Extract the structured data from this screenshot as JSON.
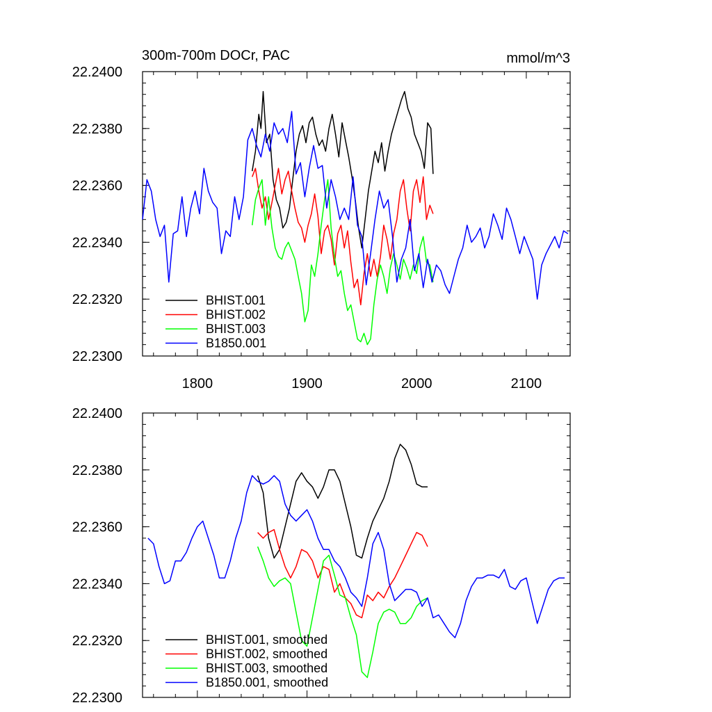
{
  "colors": {
    "BHIST.001": "#000000",
    "BHIST.002": "#ff0000",
    "BHIST.003": "#00ff00",
    "B1850.001": "#0000ff"
  },
  "chart_data": [
    {
      "type": "line",
      "title": "300m-700m DOCr, PAC",
      "units": "mmol/m^3",
      "xlabel": "",
      "ylabel": "",
      "xlim": [
        1750,
        2140
      ],
      "ylim": [
        22.23,
        22.24
      ],
      "xticks": [
        1800,
        1900,
        2000,
        2100
      ],
      "xtick_labels": [
        "1800",
        "1900",
        "2000",
        "2100"
      ],
      "yticks": [
        22.23,
        22.232,
        22.234,
        22.236,
        22.238,
        22.24
      ],
      "ytick_labels": [
        "22.2300",
        "22.2320",
        "22.2340",
        "22.2360",
        "22.2380",
        "22.2400"
      ],
      "legend_position": "bottom-left",
      "series": [
        {
          "name": "BHIST.001",
          "color": "#000000",
          "x": [
            1850,
            1853,
            1856,
            1858,
            1860,
            1863,
            1866,
            1869,
            1872,
            1875,
            1878,
            1881,
            1884,
            1887,
            1890,
            1893,
            1896,
            1899,
            1902,
            1905,
            1908,
            1911,
            1914,
            1917,
            1920,
            1923,
            1926,
            1929,
            1932,
            1935,
            1938,
            1941,
            1944,
            1947,
            1950,
            1953,
            1956,
            1959,
            1962,
            1965,
            1968,
            1971,
            1974,
            1977,
            1980,
            1983,
            1986,
            1989,
            1992,
            1995,
            1998,
            2001,
            2004,
            2007,
            2010,
            2013,
            2015
          ],
          "y": [
            22.2365,
            22.2372,
            22.2385,
            22.238,
            22.2393,
            22.2375,
            22.2378,
            22.2362,
            22.2355,
            22.2352,
            22.2345,
            22.2347,
            22.2352,
            22.2362,
            22.2372,
            22.2378,
            22.2381,
            22.2375,
            22.2382,
            22.2384,
            22.2378,
            22.2374,
            22.2376,
            22.2372,
            22.238,
            22.2385,
            22.2378,
            22.237,
            22.2382,
            22.2376,
            22.237,
            22.2363,
            22.2355,
            22.2345,
            22.2338,
            22.2348,
            22.2358,
            22.2365,
            22.2372,
            22.2368,
            22.2375,
            22.2365,
            22.2372,
            22.2378,
            22.2382,
            22.2386,
            22.239,
            22.2393,
            22.2387,
            22.2384,
            22.2378,
            22.2375,
            22.2372,
            22.2366,
            22.2382,
            22.238,
            22.2364
          ]
        },
        {
          "name": "BHIST.002",
          "color": "#ff0000",
          "x": [
            1850,
            1853,
            1856,
            1859,
            1862,
            1865,
            1868,
            1871,
            1874,
            1877,
            1880,
            1883,
            1886,
            1889,
            1892,
            1895,
            1898,
            1901,
            1904,
            1907,
            1910,
            1913,
            1916,
            1919,
            1922,
            1925,
            1928,
            1931,
            1934,
            1937,
            1940,
            1943,
            1946,
            1949,
            1952,
            1955,
            1958,
            1961,
            1964,
            1967,
            1970,
            1973,
            1976,
            1979,
            1982,
            1985,
            1988,
            1991,
            1994,
            1997,
            2000,
            2003,
            2006,
            2009,
            2012,
            2015
          ],
          "y": [
            22.2363,
            22.2366,
            22.2358,
            22.2352,
            22.2356,
            22.2348,
            22.2354,
            22.236,
            22.2366,
            22.2357,
            22.2362,
            22.2365,
            22.2358,
            22.2352,
            22.2347,
            22.2345,
            22.234,
            22.2346,
            22.235,
            22.2357,
            22.2349,
            22.2336,
            22.2344,
            22.2346,
            22.2341,
            22.2332,
            22.2343,
            22.2346,
            22.2338,
            22.2344,
            22.2333,
            22.2324,
            22.2327,
            22.2318,
            22.2329,
            22.2336,
            22.2328,
            22.2334,
            22.2328,
            22.2335,
            22.2346,
            22.2341,
            22.2334,
            22.2343,
            22.2348,
            22.2358,
            22.2362,
            22.2352,
            22.2344,
            22.2358,
            22.2362,
            22.2354,
            22.2363,
            22.2348,
            22.2353,
            22.235
          ]
        },
        {
          "name": "BHIST.003",
          "color": "#00ff00",
          "x": [
            1850,
            1853,
            1856,
            1859,
            1862,
            1865,
            1868,
            1871,
            1874,
            1877,
            1880,
            1883,
            1886,
            1889,
            1892,
            1895,
            1898,
            1901,
            1904,
            1907,
            1910,
            1913,
            1916,
            1919,
            1922,
            1925,
            1928,
            1931,
            1934,
            1937,
            1940,
            1943,
            1946,
            1949,
            1952,
            1955,
            1958,
            1961,
            1964,
            1967,
            1970,
            1973,
            1976,
            1979,
            1982,
            1985,
            1988,
            1991,
            1994,
            1997,
            2000,
            2003,
            2006,
            2009,
            2012,
            2015
          ],
          "y": [
            22.2346,
            22.2355,
            22.2359,
            22.2362,
            22.2346,
            22.2356,
            22.2345,
            22.2338,
            22.2335,
            22.2334,
            22.2338,
            22.234,
            22.2337,
            22.2334,
            22.2328,
            22.2322,
            22.2312,
            22.2316,
            22.2332,
            22.2328,
            22.2336,
            22.2346,
            22.2355,
            22.2362,
            22.2345,
            22.2335,
            22.2328,
            22.233,
            22.2322,
            22.2316,
            22.2318,
            22.2312,
            22.2306,
            22.2305,
            22.2308,
            22.2304,
            22.2306,
            22.2318,
            22.2327,
            22.2332,
            22.2328,
            22.2322,
            22.2331,
            22.2336,
            22.2332,
            22.2327,
            22.2334,
            22.2331,
            22.2327,
            22.2332,
            22.2329,
            22.2338,
            22.2342,
            22.2333,
            22.2332,
            22.2326
          ]
        },
        {
          "name": "B1850.001",
          "color": "#0000ff",
          "x": [
            1750,
            1754,
            1758,
            1762,
            1766,
            1770,
            1774,
            1778,
            1782,
            1786,
            1790,
            1794,
            1798,
            1802,
            1806,
            1810,
            1814,
            1818,
            1822,
            1826,
            1830,
            1834,
            1838,
            1842,
            1846,
            1850,
            1854,
            1858,
            1862,
            1866,
            1870,
            1874,
            1878,
            1882,
            1886,
            1890,
            1894,
            1898,
            1902,
            1906,
            1910,
            1914,
            1918,
            1922,
            1926,
            1930,
            1934,
            1938,
            1942,
            1946,
            1950,
            1954,
            1958,
            1962,
            1966,
            1970,
            1974,
            1978,
            1982,
            1986,
            1990,
            1994,
            1998,
            2002,
            2006,
            2010,
            2014,
            2018,
            2022,
            2026,
            2030,
            2034,
            2038,
            2042,
            2046,
            2050,
            2054,
            2058,
            2062,
            2066,
            2070,
            2074,
            2078,
            2082,
            2086,
            2090,
            2094,
            2098,
            2102,
            2106,
            2110,
            2114,
            2118,
            2122,
            2126,
            2130,
            2134,
            2138
          ],
          "y": [
            22.2348,
            22.2362,
            22.2358,
            22.2348,
            22.2342,
            22.2346,
            22.2326,
            22.2343,
            22.2344,
            22.2356,
            22.2342,
            22.2352,
            22.2358,
            22.235,
            22.2366,
            22.2358,
            22.2354,
            22.2352,
            22.2336,
            22.2344,
            22.2342,
            22.2356,
            22.2348,
            22.2356,
            22.2376,
            22.238,
            22.2374,
            22.237,
            22.2378,
            22.2372,
            22.2382,
            22.2378,
            22.238,
            22.2375,
            22.2386,
            22.2364,
            22.2368,
            22.2356,
            22.2366,
            22.2374,
            22.2366,
            22.2367,
            22.2352,
            22.2362,
            22.2356,
            22.2348,
            22.2352,
            22.2348,
            22.2363,
            22.2346,
            22.2342,
            22.2325,
            22.2336,
            22.2348,
            22.2358,
            22.2352,
            22.2355,
            22.2342,
            22.2326,
            22.2334,
            22.2338,
            22.2348,
            22.233,
            22.2336,
            22.2324,
            22.2334,
            22.2326,
            22.2332,
            22.233,
            22.2325,
            22.2322,
            22.2328,
            22.2334,
            22.2338,
            22.2346,
            22.234,
            22.2342,
            22.2345,
            22.2338,
            22.2342,
            22.235,
            22.2346,
            22.2341,
            22.2352,
            22.2348,
            22.2342,
            22.2336,
            22.2342,
            22.2338,
            22.2334,
            22.232,
            22.2332,
            22.2336,
            22.2339,
            22.2342,
            22.2338,
            22.2344,
            22.2343
          ]
        }
      ]
    },
    {
      "type": "line",
      "title": "",
      "xlabel": "",
      "ylabel": "",
      "xlim": [
        1750,
        2140
      ],
      "ylim": [
        22.23,
        22.24
      ],
      "xticks": [
        1800,
        1900,
        2000,
        2100
      ],
      "yticks": [
        22.23,
        22.232,
        22.234,
        22.236,
        22.238,
        22.24
      ],
      "ytick_labels": [
        "22.2300",
        "22.2320",
        "22.2340",
        "22.2360",
        "22.2380",
        "22.2400"
      ],
      "legend_position": "bottom-left",
      "series": [
        {
          "name": "BHIST.001, smoothed",
          "color": "#000000",
          "x": [
            1855,
            1860,
            1865,
            1870,
            1875,
            1880,
            1885,
            1890,
            1895,
            1900,
            1905,
            1910,
            1915,
            1920,
            1925,
            1930,
            1935,
            1940,
            1945,
            1950,
            1955,
            1960,
            1965,
            1970,
            1975,
            1980,
            1985,
            1990,
            1995,
            2000,
            2005,
            2010
          ],
          "y": [
            22.2378,
            22.2372,
            22.2356,
            22.2349,
            22.2352,
            22.236,
            22.2368,
            22.2376,
            22.2379,
            22.2376,
            22.2374,
            22.237,
            22.2374,
            22.238,
            22.238,
            22.2376,
            22.2368,
            22.236,
            22.235,
            22.2349,
            22.2356,
            22.2362,
            22.2366,
            22.237,
            22.2376,
            22.2384,
            22.2389,
            22.2387,
            22.2382,
            22.2375,
            22.2374,
            22.2374
          ]
        },
        {
          "name": "BHIST.002, smoothed",
          "color": "#ff0000",
          "x": [
            1855,
            1860,
            1865,
            1870,
            1875,
            1880,
            1885,
            1890,
            1895,
            1900,
            1905,
            1910,
            1915,
            1920,
            1925,
            1930,
            1935,
            1940,
            1945,
            1950,
            1955,
            1960,
            1965,
            1970,
            1975,
            1980,
            1985,
            1990,
            1995,
            2000,
            2005,
            2010
          ],
          "y": [
            22.2358,
            22.2356,
            22.2358,
            22.2359,
            22.2352,
            22.2346,
            22.2342,
            22.2346,
            22.2352,
            22.2351,
            22.2348,
            22.2342,
            22.2346,
            22.2345,
            22.2337,
            22.234,
            22.2335,
            22.2333,
            22.2329,
            22.2328,
            22.2336,
            22.2334,
            22.2337,
            22.2335,
            22.2339,
            22.2342,
            22.2346,
            22.235,
            22.2354,
            22.2358,
            22.2357,
            22.2353
          ]
        },
        {
          "name": "BHIST.003, smoothed",
          "color": "#00ff00",
          "x": [
            1855,
            1860,
            1865,
            1870,
            1875,
            1880,
            1885,
            1890,
            1895,
            1900,
            1905,
            1910,
            1915,
            1920,
            1925,
            1930,
            1935,
            1940,
            1945,
            1950,
            1955,
            1960,
            1965,
            1970,
            1975,
            1980,
            1985,
            1990,
            1995,
            2000,
            2005,
            2010
          ],
          "y": [
            22.2353,
            22.2348,
            22.2342,
            22.2339,
            22.2341,
            22.2342,
            22.234,
            22.233,
            22.232,
            22.2318,
            22.2328,
            22.2338,
            22.2348,
            22.235,
            22.2343,
            22.2336,
            22.2335,
            22.2328,
            22.2322,
            22.2309,
            22.2307,
            22.2316,
            22.2326,
            22.233,
            22.2331,
            22.233,
            22.2326,
            22.2326,
            22.2328,
            22.2332,
            22.2334,
            22.2335
          ]
        },
        {
          "name": "B1850.001, smoothed",
          "color": "#0000ff",
          "x": [
            1755,
            1760,
            1765,
            1770,
            1775,
            1780,
            1785,
            1790,
            1795,
            1800,
            1805,
            1810,
            1815,
            1820,
            1825,
            1830,
            1835,
            1840,
            1845,
            1850,
            1855,
            1860,
            1865,
            1870,
            1875,
            1880,
            1885,
            1890,
            1895,
            1900,
            1905,
            1910,
            1915,
            1920,
            1925,
            1930,
            1935,
            1940,
            1945,
            1950,
            1955,
            1960,
            1965,
            1970,
            1975,
            1980,
            1985,
            1990,
            1995,
            2000,
            2005,
            2010,
            2015,
            2020,
            2025,
            2030,
            2035,
            2040,
            2045,
            2050,
            2055,
            2060,
            2065,
            2070,
            2075,
            2080,
            2085,
            2090,
            2095,
            2100,
            2105,
            2110,
            2115,
            2120,
            2125,
            2130,
            2135
          ],
          "y": [
            22.2356,
            22.2354,
            22.2346,
            22.234,
            22.2341,
            22.2348,
            22.2348,
            22.2351,
            22.2356,
            22.236,
            22.2362,
            22.2356,
            22.235,
            22.2342,
            22.2342,
            22.2348,
            22.2356,
            22.2362,
            22.2372,
            22.2378,
            22.2376,
            22.2375,
            22.2376,
            22.2378,
            22.2376,
            22.2368,
            22.2364,
            22.2362,
            22.2364,
            22.2366,
            22.2362,
            22.2356,
            22.2352,
            22.2352,
            22.2348,
            22.2346,
            22.2342,
            22.2337,
            22.2335,
            22.2332,
            22.2342,
            22.2354,
            22.2358,
            22.2352,
            22.234,
            22.2334,
            22.2336,
            22.2338,
            22.2338,
            22.2337,
            22.2332,
            22.2335,
            22.2328,
            22.2329,
            22.2326,
            22.2323,
            22.2321,
            22.2326,
            22.2334,
            22.2339,
            22.2342,
            22.2342,
            22.2343,
            22.2343,
            22.2342,
            22.2345,
            22.2339,
            22.2338,
            22.2341,
            22.2342,
            22.2334,
            22.2326,
            22.2332,
            22.2338,
            22.2341,
            22.2342,
            22.2342
          ]
        }
      ]
    }
  ]
}
